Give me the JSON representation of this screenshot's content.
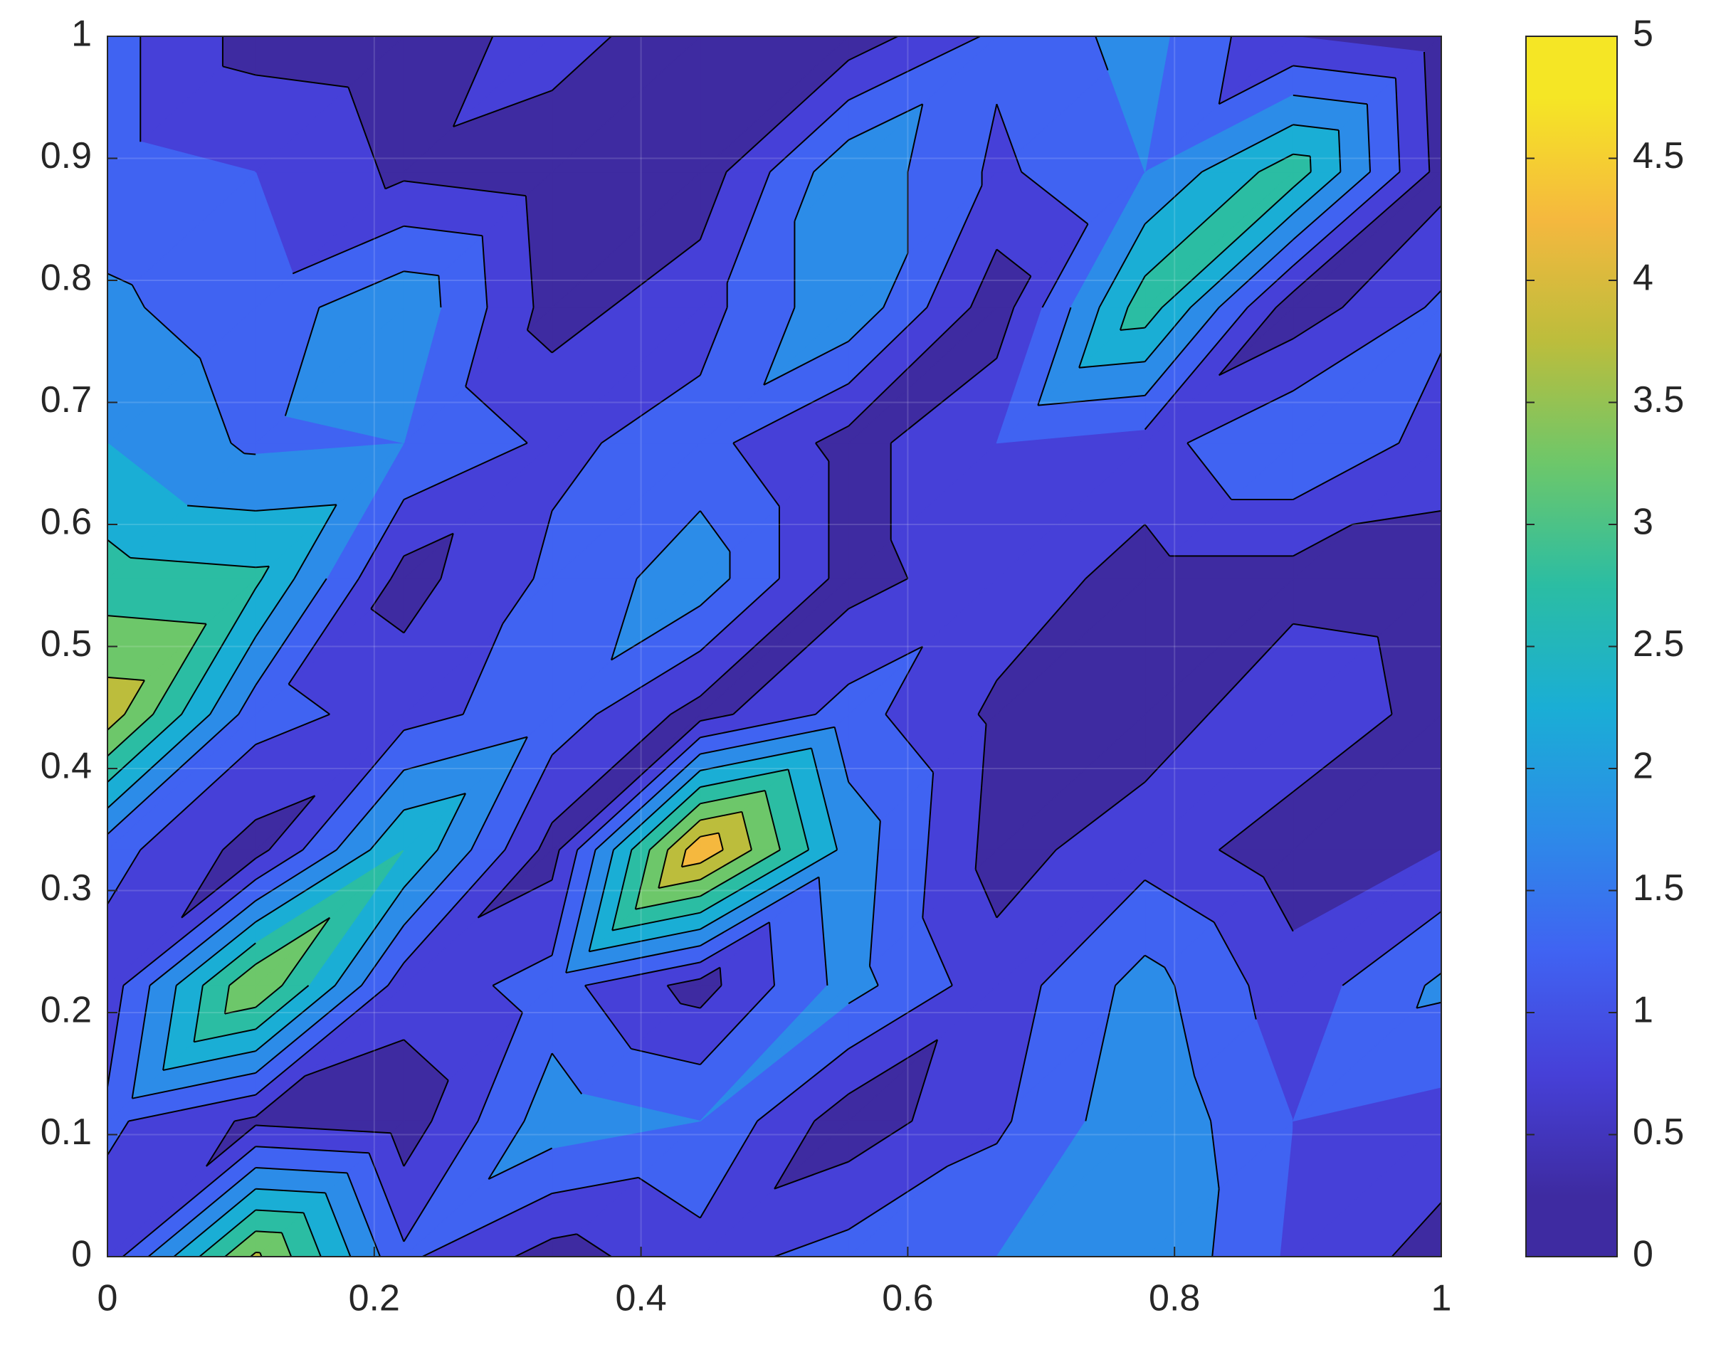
{
  "chart_data": {
    "type": "contour",
    "x": [
      0,
      0.1111,
      0.2222,
      0.3333,
      0.4444,
      0.5556,
      0.6667,
      0.7778,
      0.8889,
      1
    ],
    "y": [
      0,
      0.1111,
      0.2222,
      0.3333,
      0.4444,
      0.5556,
      0.6667,
      0.7778,
      0.8889,
      1
    ],
    "z": [
      [
        0.7,
        3.6,
        1.1,
        0.3,
        0.8,
        1.2,
        1.5,
        2.0,
        0.9,
        0.3
      ],
      [
        1.1,
        0.4,
        0.2,
        1.8,
        1.5,
        0.2,
        0.9,
        1.9,
        1.0,
        0.8
      ],
      [
        0.7,
        3.5,
        0.7,
        1.2,
        0.3,
        1.7,
        0.7,
        1.7,
        0.7,
        1.6
      ],
      [
        1.2,
        0.3,
        2.5,
        0.3,
        4.4,
        1.8,
        0.3,
        0.8,
        0.2,
        0.5
      ],
      [
        3.8,
        1.2,
        0.8,
        1.3,
        0.3,
        1.2,
        0.4,
        0.2,
        0.9,
        0.3
      ],
      [
        2.7,
        2.6,
        0.3,
        1.1,
        1.8,
        0.3,
        0.8,
        0.3,
        0.3,
        0.2
      ],
      [
        2.0,
        1.4,
        1.5,
        0.9,
        1.2,
        0.3,
        1.0,
        0.8,
        1.5,
        0.8
      ],
      [
        1.6,
        1.2,
        1.9,
        0.3,
        0.8,
        1.9,
        0.2,
        2.8,
        0.2,
        1.1
      ],
      [
        1.2,
        1.0,
        0.4,
        0.2,
        0.2,
        1.9,
        0.9,
        1.5,
        2.8,
        0.3
      ],
      [
        1.2,
        0.3,
        0.2,
        0.7,
        0.2,
        0.2,
        1.1,
        1.7,
        0.5,
        0.2
      ]
    ],
    "levels": [
      0,
      0.5,
      1,
      1.5,
      2,
      2.5,
      3,
      3.5,
      4,
      4.5,
      5
    ],
    "band_colors": [
      "#3e2ba1",
      "#4640d8",
      "#4063f2",
      "#2c8ce8",
      "#1aaed5",
      "#2bbda3",
      "#6dc76a",
      "#bcbd3c",
      "#f5b83e",
      "#f5e625"
    ],
    "line_color": "#000000",
    "xlim": [
      0,
      1
    ],
    "ylim": [
      0,
      1
    ],
    "xticks": [
      0,
      0.2,
      0.4,
      0.6,
      0.8,
      1
    ],
    "yticks": [
      0,
      0.1,
      0.2,
      0.3,
      0.4,
      0.5,
      0.6,
      0.7,
      0.8,
      0.9,
      1
    ],
    "grid": true,
    "clim": [
      0,
      5
    ],
    "cticks": [
      0,
      0.5,
      1,
      1.5,
      2,
      2.5,
      3,
      3.5,
      4,
      4.5,
      5
    ]
  }
}
